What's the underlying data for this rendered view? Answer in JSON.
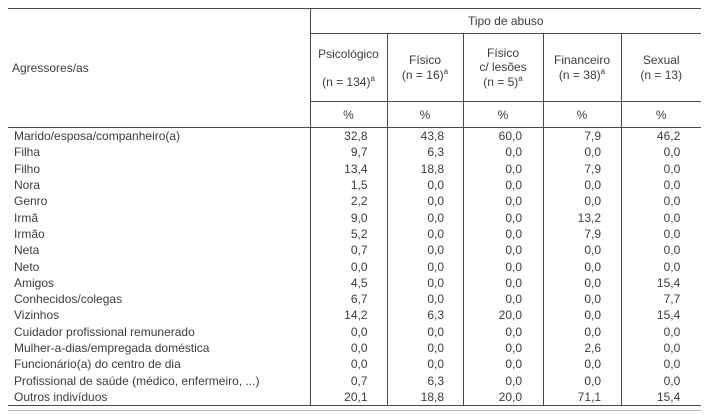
{
  "colors": {
    "background": "#ffffff",
    "text": "#3c3c3c",
    "border_dark": "#4a4a4a",
    "rule_light": "#b8b8b8"
  },
  "table": {
    "row_header_title": "Agressores/as",
    "col_group_title": "Tipo de abuso",
    "unit_label": "%",
    "columns": [
      {
        "name_lines": [
          "Psicológico"
        ],
        "n_label": "(n = 134)",
        "footnote": "a"
      },
      {
        "name_lines": [
          "Físico"
        ],
        "n_label": "(n = 16)",
        "footnote": "a"
      },
      {
        "name_lines": [
          "Físico",
          "c/ lesões"
        ],
        "n_label": "(n = 5)",
        "footnote": "a"
      },
      {
        "name_lines": [
          "Financeiro"
        ],
        "n_label": "(n = 38)",
        "footnote": "a"
      },
      {
        "name_lines": [
          "Sexual"
        ],
        "n_label": "(n = 13)",
        "footnote": ""
      }
    ],
    "rows": [
      {
        "label": "Marido/esposa/companheiro(a)",
        "values": [
          "32,8",
          "43,8",
          "60,0",
          "7,9",
          "46,2"
        ]
      },
      {
        "label": "Filha",
        "values": [
          "9,7",
          "6,3",
          "0,0",
          "0,0",
          "0,0"
        ]
      },
      {
        "label": "Filho",
        "values": [
          "13,4",
          "18,8",
          "0,0",
          "7,9",
          "0,0"
        ]
      },
      {
        "label": "Nora",
        "values": [
          "1,5",
          "0,0",
          "0,0",
          "0,0",
          "0,0"
        ]
      },
      {
        "label": "Genro",
        "values": [
          "2,2",
          "0,0",
          "0,0",
          "0,0",
          "0,0"
        ]
      },
      {
        "label": "Irmã",
        "values": [
          "9,0",
          "0,0",
          "0,0",
          "13,2",
          "0,0"
        ]
      },
      {
        "label": "Irmão",
        "values": [
          "5,2",
          "0,0",
          "0,0",
          "7,9",
          "0,0"
        ]
      },
      {
        "label": "Neta",
        "values": [
          "0,7",
          "0,0",
          "0,0",
          "0,0",
          "0,0"
        ]
      },
      {
        "label": "Neto",
        "values": [
          "0,0",
          "0,0",
          "0,0",
          "0,0",
          "0,0"
        ]
      },
      {
        "label": "Amigos",
        "values": [
          "4,5",
          "0,0",
          "0,0",
          "0,0",
          "15,4"
        ]
      },
      {
        "label": "Conhecidos/colegas",
        "values": [
          "6,7",
          "0,0",
          "0,0",
          "0,0",
          "7,7"
        ]
      },
      {
        "label": "Vizinhos",
        "values": [
          "14,2",
          "6,3",
          "20,0",
          "0,0",
          "15,4"
        ]
      },
      {
        "label": "Cuidador profissional remunerado",
        "values": [
          "0,0",
          "0,0",
          "0,0",
          "0,0",
          "0,0"
        ]
      },
      {
        "label": "Mulher-a-dias/empregada doméstica",
        "values": [
          "0,0",
          "0,0",
          "0,0",
          "2,6",
          "0,0"
        ]
      },
      {
        "label": "Funcionário(a) do centro de dia",
        "values": [
          "0,0",
          "0,0",
          "0,0",
          "0,0",
          "0,0"
        ]
      },
      {
        "label": "Profissional de saúde (médico, enfermeiro, ...)",
        "values": [
          "0,7",
          "6,3",
          "0,0",
          "0,0",
          "0,0"
        ]
      },
      {
        "label": "Outros indivíduos",
        "values": [
          "20,1",
          "18,8",
          "20,0",
          "71,1",
          "15,4"
        ]
      }
    ]
  },
  "chart_data": {
    "type": "table",
    "title": "Tipo de abuso",
    "categories": [
      "Marido/esposa/companheiro(a)",
      "Filha",
      "Filho",
      "Nora",
      "Genro",
      "Irmã",
      "Irmão",
      "Neta",
      "Neto",
      "Amigos",
      "Conhecidos/colegas",
      "Vizinhos",
      "Cuidador profissional remunerado",
      "Mulher-a-dias/empregada doméstica",
      "Funcionário(a) do centro de dia",
      "Profissional de saúde (médico, enfermeiro, ...)",
      "Outros indivíduos"
    ],
    "series": [
      {
        "name": "Psicológico (n = 134)",
        "values": [
          32.8,
          9.7,
          13.4,
          1.5,
          2.2,
          9.0,
          5.2,
          0.7,
          0.0,
          4.5,
          6.7,
          14.2,
          0.0,
          0.0,
          0.0,
          0.7,
          20.1
        ]
      },
      {
        "name": "Físico (n = 16)",
        "values": [
          43.8,
          6.3,
          18.8,
          0.0,
          0.0,
          0.0,
          0.0,
          0.0,
          0.0,
          0.0,
          0.0,
          6.3,
          0.0,
          0.0,
          0.0,
          6.3,
          18.8
        ]
      },
      {
        "name": "Físico c/ lesões (n = 5)",
        "values": [
          60.0,
          0.0,
          0.0,
          0.0,
          0.0,
          0.0,
          0.0,
          0.0,
          0.0,
          0.0,
          0.0,
          20.0,
          0.0,
          0.0,
          0.0,
          0.0,
          20.0
        ]
      },
      {
        "name": "Financeiro (n = 38)",
        "values": [
          7.9,
          0.0,
          7.9,
          0.0,
          0.0,
          13.2,
          7.9,
          0.0,
          0.0,
          0.0,
          0.0,
          0.0,
          0.0,
          2.6,
          0.0,
          0.0,
          71.1
        ]
      },
      {
        "name": "Sexual (n = 13)",
        "values": [
          46.2,
          0.0,
          0.0,
          0.0,
          0.0,
          0.0,
          0.0,
          0.0,
          0.0,
          15.4,
          7.7,
          15.4,
          0.0,
          0.0,
          0.0,
          0.0,
          15.4
        ]
      }
    ],
    "ylabel": "%"
  }
}
